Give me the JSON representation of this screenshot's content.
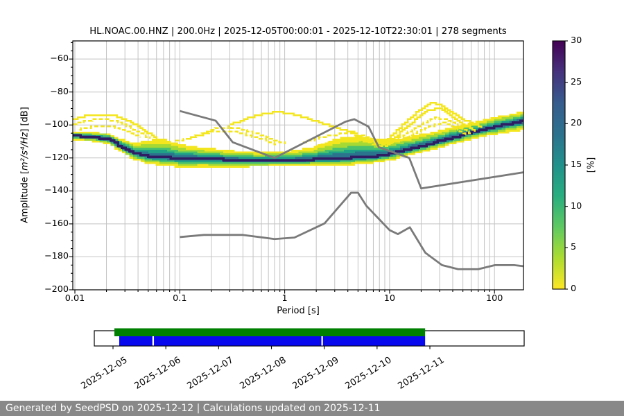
{
  "header": {
    "title": "HL.NOAC.00.HNZ | 200.0Hz | 2025-12-05T00:00:01 - 2025-12-10T22:30:01 | 278 segments"
  },
  "footer": {
    "text": "Generated by SeedPSD on 2025-12-12 | Calculations updated on 2025-12-11",
    "bg": "#888888",
    "fg": "#ffffff"
  },
  "chart_data": [
    {
      "type": "heatmap",
      "title": "HL.NOAC.00.HNZ | 200.0Hz | 2025-12-05T00:00:01 - 2025-12-10T22:30:01 | 278 segments",
      "xlabel": "Period [s]",
      "ylabel_prefix": "Amplitude [",
      "ylabel_math": "m²/s⁴/Hz",
      "ylabel_suffix": "] [dB]",
      "xscale": "log",
      "xlim": [
        0.0096,
        192
      ],
      "ylim": [
        -200,
        -49
      ],
      "grid": true,
      "xticks": [
        {
          "v": 0.01,
          "label": "0.01"
        },
        {
          "v": 0.1,
          "label": "0.1"
        },
        {
          "v": 1,
          "label": "1"
        },
        {
          "v": 10,
          "label": "10"
        },
        {
          "v": 100,
          "label": "100"
        }
      ],
      "yticks": [
        -60,
        -80,
        -100,
        -120,
        -140,
        -160,
        -180,
        -200
      ],
      "colorbar": {
        "label": "[%]",
        "ticks": [
          0,
          5,
          10,
          15,
          20,
          25,
          30
        ],
        "vmin": 0,
        "vmax": 30,
        "stops_top_to_bottom": [
          "#440154",
          "#46327e",
          "#365c8d",
          "#2c728e",
          "#21918c",
          "#28ae80",
          "#5ec962",
          "#addc30",
          "#fde725"
        ]
      },
      "noise_models": {
        "color": "#7a7a7a",
        "nhnm": [
          [
            0.1,
            -91.5
          ],
          [
            0.22,
            -97.4
          ],
          [
            0.32,
            -110.5
          ],
          [
            0.8,
            -120
          ],
          [
            3.8,
            -98
          ],
          [
            4.6,
            -96.5
          ],
          [
            6.3,
            -101
          ],
          [
            7.9,
            -113.5
          ],
          [
            15.4,
            -120
          ],
          [
            20,
            -138.5
          ],
          [
            354.8,
            -126
          ]
        ],
        "nlnm": [
          [
            0.1,
            -168
          ],
          [
            0.17,
            -166.7
          ],
          [
            0.4,
            -166.7
          ],
          [
            0.8,
            -169.2
          ],
          [
            1.24,
            -168.3
          ],
          [
            2.4,
            -159.7
          ],
          [
            4.3,
            -141.1
          ],
          [
            5,
            -141.1
          ],
          [
            6,
            -149
          ],
          [
            10,
            -163.8
          ],
          [
            12,
            -166.2
          ],
          [
            15.6,
            -162.1
          ],
          [
            21.9,
            -177.5
          ],
          [
            31.6,
            -185
          ],
          [
            45,
            -187.5
          ],
          [
            70,
            -187.5
          ],
          [
            101,
            -185
          ],
          [
            154,
            -185
          ],
          [
            328,
            -187.5
          ]
        ]
      },
      "band": {
        "layer_colors": [
          "#f4e61e",
          "#a6d934",
          "#4ac16d",
          "#1fa187",
          "#2b748e"
        ],
        "layer_fracs": [
          1,
          0.74,
          0.53,
          0.37,
          0.24
        ],
        "core_color": "#2f1c63",
        "points": [
          [
            0.0096,
            -106.5,
            2.6,
            2.6
          ],
          [
            0.013,
            -107,
            3,
            2.8
          ],
          [
            0.02,
            -108.5,
            3.6,
            3
          ],
          [
            0.027,
            -113,
            4.6,
            3.6
          ],
          [
            0.035,
            -117,
            6,
            4.2
          ],
          [
            0.05,
            -119,
            10,
            5
          ],
          [
            0.07,
            -119.5,
            11,
            5.2
          ],
          [
            0.1,
            -120.5,
            8.5,
            5.5
          ],
          [
            0.15,
            -120.5,
            7,
            5
          ],
          [
            0.25,
            -121,
            6,
            4.5
          ],
          [
            0.5,
            -121.5,
            5,
            3.8
          ],
          [
            1,
            -121.5,
            5.5,
            3.6
          ],
          [
            1.8,
            -121,
            7.5,
            4
          ],
          [
            3,
            -120.5,
            12.5,
            4.5
          ],
          [
            5,
            -119.5,
            13,
            4.5
          ],
          [
            7,
            -119,
            10.5,
            4.2
          ],
          [
            10,
            -117.5,
            8.5,
            4
          ],
          [
            15,
            -114.5,
            7.5,
            4
          ],
          [
            25,
            -111,
            7,
            4
          ],
          [
            45,
            -106.5,
            6.5,
            4.2
          ],
          [
            80,
            -102.5,
            6,
            4.4
          ],
          [
            130,
            -99.5,
            6,
            5
          ],
          [
            192,
            -97.5,
            6.5,
            5.5
          ]
        ]
      },
      "outliers": {
        "color": "#f4e61e",
        "arcs": [
          {
            "dash": 0,
            "pts": [
              [
                0.0096,
                -96.5
              ],
              [
                0.012,
                -94.8
              ],
              [
                0.016,
                -93.8
              ],
              [
                0.021,
                -93.8
              ],
              [
                0.026,
                -95
              ],
              [
                0.032,
                -97.5
              ],
              [
                0.04,
                -101
              ],
              [
                0.05,
                -105
              ],
              [
                0.06,
                -108
              ]
            ]
          },
          {
            "dash": 1,
            "pts": [
              [
                0.0096,
                -99.5
              ],
              [
                0.013,
                -97.2
              ],
              [
                0.018,
                -96.3
              ],
              [
                0.024,
                -97.5
              ],
              [
                0.03,
                -100
              ],
              [
                0.04,
                -104.5
              ],
              [
                0.052,
                -108.5
              ]
            ]
          },
          {
            "dash": 1,
            "pts": [
              [
                0.011,
                -102.5
              ],
              [
                0.016,
                -100.5
              ],
              [
                0.022,
                -100.8
              ],
              [
                0.03,
                -103.5
              ],
              [
                0.042,
                -107.5
              ]
            ]
          },
          {
            "dash": 0,
            "pts": [
              [
                0.3,
                -100
              ],
              [
                0.42,
                -96
              ],
              [
                0.6,
                -93.2
              ],
              [
                0.8,
                -92.2
              ],
              [
                1.05,
                -92.8
              ],
              [
                1.4,
                -94.8
              ],
              [
                1.9,
                -97.5
              ],
              [
                2.6,
                -100.3
              ],
              [
                3.6,
                -103
              ],
              [
                5,
                -105.5
              ]
            ]
          },
          {
            "dash": 1,
            "pts": [
              [
                0.12,
                -108.5
              ],
              [
                0.17,
                -104.5
              ],
              [
                0.23,
                -101.8
              ],
              [
                0.3,
                -101.2
              ],
              [
                0.4,
                -102.8
              ],
              [
                0.55,
                -105.5
              ],
              [
                0.75,
                -108.5
              ],
              [
                1,
                -111.5
              ]
            ]
          },
          {
            "dash": 1,
            "pts": [
              [
                0.09,
                -110
              ],
              [
                0.14,
                -106.5
              ],
              [
                0.2,
                -104
              ],
              [
                0.28,
                -103.5
              ],
              [
                0.4,
                -105.5
              ],
              [
                0.6,
                -108.5
              ],
              [
                0.85,
                -112
              ]
            ]
          },
          {
            "dash": 0,
            "pts": [
              [
                8,
                -113
              ],
              [
                11,
                -104.5
              ],
              [
                15,
                -96.5
              ],
              [
                20,
                -89.5
              ],
              [
                25,
                -86.8
              ],
              [
                31,
                -88
              ],
              [
                40,
                -92.5
              ],
              [
                55,
                -98
              ],
              [
                75,
                -101.5
              ]
            ]
          },
          {
            "dash": 0,
            "pts": [
              [
                9,
                -112.5
              ],
              [
                13,
                -103.5
              ],
              [
                18,
                -96
              ],
              [
                24,
                -90.5
              ],
              [
                30,
                -90
              ],
              [
                38,
                -94
              ],
              [
                50,
                -99.5
              ],
              [
                65,
                -104
              ]
            ]
          },
          {
            "dash": 1,
            "pts": [
              [
                10,
                -111
              ],
              [
                14,
                -105.5
              ],
              [
                20,
                -99.5
              ],
              [
                27,
                -95.5
              ],
              [
                35,
                -96.5
              ],
              [
                45,
                -101
              ],
              [
                60,
                -106
              ]
            ]
          },
          {
            "dash": 1,
            "pts": [
              [
                12,
                -110
              ],
              [
                17,
                -105
              ],
              [
                24,
                -101
              ],
              [
                32,
                -98.5
              ],
              [
                42,
                -102
              ],
              [
                55,
                -106.5
              ]
            ]
          },
          {
            "dash": 1,
            "pts": [
              [
                1.5,
                -110.5
              ],
              [
                2.2,
                -107.5
              ],
              [
                3,
                -105.8
              ],
              [
                4.2,
                -105.2
              ],
              [
                5.5,
                -106.5
              ],
              [
                7,
                -108.5
              ],
              [
                9,
                -111.5
              ]
            ]
          },
          {
            "dash": 1,
            "pts": [
              [
                2,
                -113
              ],
              [
                3,
                -110
              ],
              [
                4.5,
                -108.5
              ],
              [
                6,
                -110
              ],
              [
                8,
                -113
              ]
            ]
          }
        ]
      }
    },
    {
      "type": "timeline",
      "tick_labels": [
        "2025-12-05",
        "2025-12-06",
        "2025-12-07",
        "2025-12-08",
        "2025-12-09",
        "2025-12-10",
        "2025-12-11"
      ],
      "green": {
        "color": "#008000",
        "span_days": [
          0.026,
          5.91
        ]
      },
      "blue": {
        "color": "#0808ee",
        "spans_days": [
          [
            0.118,
            0.745
          ],
          [
            0.775,
            3.945
          ],
          [
            3.975,
            5.91
          ]
        ]
      }
    }
  ]
}
